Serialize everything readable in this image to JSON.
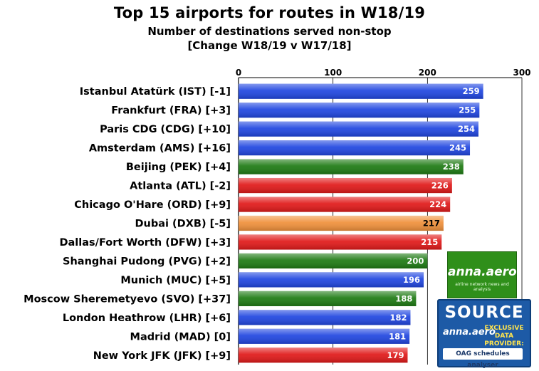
{
  "chart_data": {
    "type": "bar",
    "orientation": "horizontal",
    "title": "Top 15 airports for routes in W18/19",
    "subtitle": "Number of destinations served non-stop",
    "subtitle2": "[Change W18/19 v W17/18]",
    "xlim": [
      0,
      300
    ],
    "xticks": [
      "0",
      "100",
      "200",
      "300"
    ],
    "grid": true,
    "categories": [
      "Istanbul Atatürk (IST) [-1]",
      "Frankfurt (FRA) [+3]",
      "Paris CDG (CDG) [+10]",
      "Amsterdam (AMS) [+16]",
      "Beijing (PEK) [+4]",
      "Atlanta (ATL) [-2]",
      "Chicago O'Hare (ORD) [+9]",
      "Dubai (DXB) [-5]",
      "Dallas/Fort Worth (DFW) [+3]",
      "Shanghai Pudong (PVG) [+2]",
      "Munich (MUC) [+5]",
      "Moscow Sheremetyevo (SVO) [+37]",
      "London Heathrow (LHR) [+6]",
      "Madrid (MAD) [0]",
      "New York JFK (JFK) [+9]"
    ],
    "values": [
      259,
      255,
      254,
      245,
      238,
      226,
      224,
      217,
      215,
      200,
      196,
      188,
      182,
      181,
      179
    ],
    "bar_colors": [
      "#1f45e0",
      "#1f45e0",
      "#1f45e0",
      "#1f45e0",
      "#1d7a12",
      "#e01818",
      "#e01818",
      "#f0903a",
      "#e01818",
      "#1d7a12",
      "#1f45e0",
      "#1d7a12",
      "#1f45e0",
      "#1f45e0",
      "#e01818"
    ],
    "value_label_colors": [
      "#ffffff",
      "#ffffff",
      "#ffffff",
      "#ffffff",
      "#ffffff",
      "#ffffff",
      "#ffffff",
      "#000000",
      "#ffffff",
      "#ffffff",
      "#ffffff",
      "#ffffff",
      "#ffffff",
      "#ffffff",
      "#ffffff"
    ]
  },
  "logos": {
    "anna_aero_word": "anna.aero",
    "anna_aero_tag": "airline network news and analysis",
    "source_label": "SOURCE",
    "source_anna_word": "anna.aero",
    "exclusive_text": "EXCLUSIVE DATA PROVIDER:",
    "oag_text": "OAG schedules analyser"
  }
}
